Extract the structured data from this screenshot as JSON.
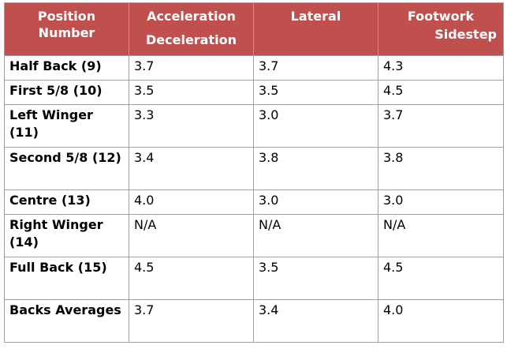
{
  "headers": {
    "position": [
      "Position",
      "Number"
    ],
    "acceleration": [
      "Acceleration",
      "Deceleration"
    ],
    "lateral": [
      "Lateral"
    ],
    "footwork": [
      "Footwork",
      "Sidestep"
    ]
  },
  "rows": [
    {
      "position": "Half Back (9)",
      "acceleration": "3.7",
      "lateral": "3.7",
      "footwork": "4.3"
    },
    {
      "position": "First 5/8 (10)",
      "acceleration": "3.5",
      "lateral": "3.5",
      "footwork": "4.5"
    },
    {
      "position": "Left Winger (11)",
      "acceleration": "3.3",
      "lateral": "3.0",
      "footwork": "3.7"
    },
    {
      "position": "Second 5/8 (12)",
      "acceleration": "3.4",
      "lateral": "3.8",
      "footwork": "3.8"
    },
    {
      "position": "Centre (13)",
      "acceleration": "4.0",
      "lateral": "3.0",
      "footwork": "3.0"
    },
    {
      "position": "Right Winger (14)",
      "acceleration": "N/A",
      "lateral": "N/A",
      "footwork": "N/A"
    },
    {
      "position": "Full Back (15)",
      "acceleration": "4.5",
      "lateral": "3.5",
      "footwork": "4.5"
    },
    {
      "position": "Backs Averages",
      "acceleration": "3.7",
      "lateral": "3.4",
      "footwork": "4.0"
    }
  ],
  "colors": {
    "header_bg": "#c0504d",
    "header_text": "#ffffff",
    "border": "#a0a0a0"
  }
}
